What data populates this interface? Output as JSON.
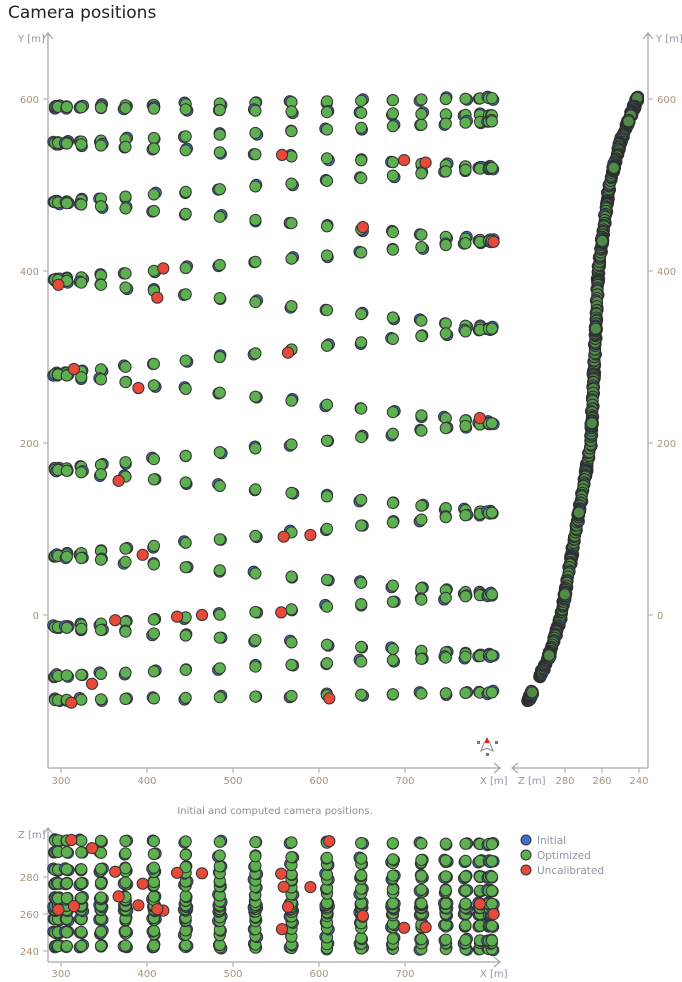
{
  "chart_data": {
    "type": "scatter",
    "title": "Camera positions",
    "caption": "Initial and computed camera positions.",
    "legend": [
      {
        "label": "Initial",
        "color": "#3f6fc6"
      },
      {
        "label": "Optimized",
        "color": "#5cb04f"
      },
      {
        "label": "Uncalibrated",
        "color": "#e84a3a"
      }
    ],
    "legend_placement": "bottom-right",
    "panels": {
      "xy": {
        "xlabel": "X [m]",
        "ylabel": "Y [m]",
        "xticks": [
          300,
          400,
          500,
          600,
          700
        ],
        "yticks": [
          600,
          400,
          200,
          0
        ],
        "xlim": [
          285,
          810
        ],
        "ylim": [
          -178,
          675
        ]
      },
      "zy": {
        "xlabel": "Z [m]",
        "ylabel": "Y [m]",
        "xticks": [
          280,
          260,
          240
        ],
        "yticks": [
          600,
          400,
          200,
          0
        ],
        "xlim": [
          308,
          235
        ]
      },
      "xz": {
        "xlabel": "X [m]",
        "ylabel": "Z [m]",
        "xticks": [
          300,
          400,
          500,
          600,
          700
        ],
        "yticks": [
          280,
          260,
          240
        ],
        "ylim": [
          234,
          302
        ]
      }
    },
    "flight_lines": [
      {
        "x_start": 293,
        "x_end": 801,
        "y_start": 591,
        "y_end": 601,
        "count": 20
      },
      {
        "x_start": 293,
        "x_end": 801,
        "y_start": 591,
        "y_end": 581,
        "count": 20
      },
      {
        "x_start": 293,
        "x_end": 801,
        "y_start": 549,
        "y_end": 574,
        "count": 20
      },
      {
        "x_start": 293,
        "x_end": 801,
        "y_start": 549,
        "y_end": 520,
        "count": 20
      },
      {
        "x_start": 293,
        "x_end": 801,
        "y_start": 480,
        "y_end": 520,
        "count": 20
      },
      {
        "x_start": 293,
        "x_end": 801,
        "y_start": 480,
        "y_end": 435,
        "count": 20
      },
      {
        "x_start": 293,
        "x_end": 801,
        "y_start": 390,
        "y_end": 435,
        "count": 20
      },
      {
        "x_start": 293,
        "x_end": 801,
        "y_start": 390,
        "y_end": 333,
        "count": 20
      },
      {
        "x_start": 293,
        "x_end": 801,
        "y_start": 280,
        "y_end": 333,
        "count": 20
      },
      {
        "x_start": 293,
        "x_end": 801,
        "y_start": 280,
        "y_end": 223,
        "count": 20
      },
      {
        "x_start": 293,
        "x_end": 801,
        "y_start": 169,
        "y_end": 223,
        "count": 20
      },
      {
        "x_start": 293,
        "x_end": 801,
        "y_start": 169,
        "y_end": 119,
        "count": 20
      },
      {
        "x_start": 293,
        "x_end": 801,
        "y_start": 69,
        "y_end": 119,
        "count": 20
      },
      {
        "x_start": 293,
        "x_end": 801,
        "y_start": 69,
        "y_end": 24,
        "count": 20
      },
      {
        "x_start": 293,
        "x_end": 801,
        "y_start": -14,
        "y_end": 24,
        "count": 20
      },
      {
        "x_start": 293,
        "x_end": 801,
        "y_start": -14,
        "y_end": -47,
        "count": 20
      },
      {
        "x_start": 293,
        "x_end": 801,
        "y_start": -71,
        "y_end": -47,
        "count": 20
      },
      {
        "x_start": 293,
        "x_end": 801,
        "y_start": -99,
        "y_end": -90,
        "count": 20
      }
    ],
    "z_profile": [
      [
        -100,
        300
      ],
      [
        -50,
        289
      ],
      [
        0,
        282
      ],
      [
        200,
        266
      ],
      [
        400,
        262
      ],
      [
        500,
        256
      ],
      [
        550,
        250
      ],
      [
        600,
        241
      ]
    ],
    "initial_offset_m": 2,
    "uncalibrated": [
      [
        395,
        70
      ],
      [
        557,
        535
      ],
      [
        699,
        529
      ],
      [
        724,
        526
      ],
      [
        651,
        451
      ],
      [
        803,
        434
      ],
      [
        419,
        403
      ],
      [
        412,
        369
      ],
      [
        297,
        384
      ],
      [
        564,
        305
      ],
      [
        315,
        286
      ],
      [
        390,
        264
      ],
      [
        367,
        156
      ],
      [
        590,
        93
      ],
      [
        559,
        91
      ],
      [
        363,
        -6
      ],
      [
        435,
        -2
      ],
      [
        464,
        0
      ],
      [
        556,
        3
      ],
      [
        336,
        -80
      ],
      [
        612,
        -97
      ],
      [
        312,
        -102
      ],
      [
        787,
        229
      ]
    ]
  }
}
